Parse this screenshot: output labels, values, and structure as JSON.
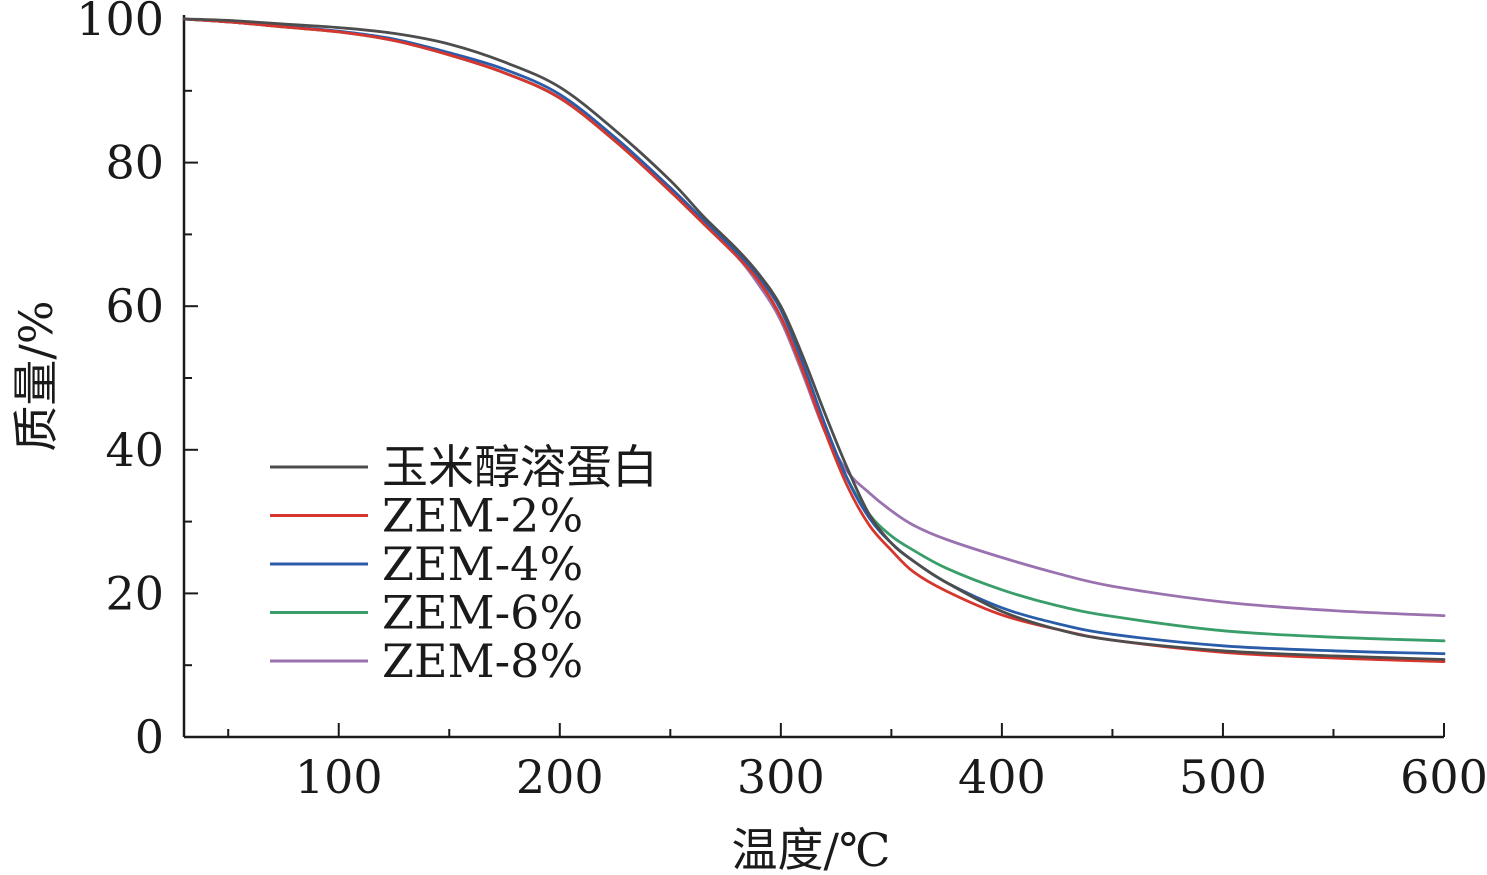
{
  "chart_data": {
    "type": "line",
    "title": "",
    "xlabel": "温度/℃",
    "ylabel": "质量/%",
    "xlim": [
      30,
      600
    ],
    "ylim": [
      0,
      100
    ],
    "x_ticks": [
      "100",
      "200",
      "300",
      "400",
      "500",
      "600"
    ],
    "y_ticks": [
      "0",
      "20",
      "40",
      "60",
      "80",
      "100"
    ],
    "grid": false,
    "legend_position": "lower-left",
    "x": [
      30,
      50,
      75,
      100,
      125,
      150,
      175,
      200,
      225,
      250,
      265,
      280,
      290,
      300,
      310,
      320,
      330,
      340,
      350,
      360,
      375,
      400,
      425,
      450,
      500,
      550,
      600
    ],
    "series": [
      {
        "name": "玉米醇溶蛋白",
        "color": "#4d4d4d",
        "values": [
          100,
          99.8,
          99.3,
          98.8,
          98.0,
          96.5,
          94.0,
          90.5,
          84.5,
          77.5,
          72.5,
          68.0,
          64.5,
          60.0,
          53.0,
          45.0,
          37.5,
          31.0,
          27.0,
          24.5,
          21.5,
          17.5,
          15.0,
          13.5,
          12.0,
          11.3,
          10.8
        ]
      },
      {
        "name": "ZEM-2%",
        "color": "#d6362d",
        "values": [
          100,
          99.6,
          98.9,
          98.2,
          97.0,
          95.0,
          92.5,
          89.0,
          83.0,
          76.0,
          71.5,
          67.0,
          63.5,
          58.5,
          51.0,
          42.5,
          35.0,
          29.5,
          26.0,
          23.0,
          20.3,
          17.0,
          15.0,
          13.5,
          11.8,
          11.0,
          10.5
        ]
      },
      {
        "name": "ZEM-4%",
        "color": "#2a5caa",
        "values": [
          100,
          99.6,
          99.0,
          98.3,
          97.2,
          95.3,
          93.0,
          89.5,
          83.5,
          76.5,
          72.0,
          67.5,
          64.0,
          59.5,
          52.0,
          43.5,
          36.0,
          30.5,
          27.0,
          24.5,
          21.5,
          18.0,
          15.8,
          14.3,
          12.7,
          12.0,
          11.6
        ]
      },
      {
        "name": "ZEM-6%",
        "color": "#3a9e6a",
        "values": [
          100,
          99.6,
          98.9,
          98.2,
          97.0,
          95.0,
          92.5,
          89.0,
          83.0,
          76.0,
          71.5,
          67.0,
          63.5,
          58.5,
          51.0,
          43.0,
          36.0,
          31.0,
          28.0,
          26.0,
          23.5,
          20.5,
          18.3,
          16.8,
          14.8,
          13.9,
          13.4
        ]
      },
      {
        "name": "ZEM-8%",
        "color": "#9b72b0",
        "values": [
          100,
          99.6,
          98.9,
          98.2,
          97.0,
          95.0,
          92.5,
          89.0,
          83.0,
          76.0,
          71.5,
          67.0,
          63.0,
          58.0,
          50.5,
          42.5,
          37.0,
          34.0,
          31.5,
          29.5,
          27.5,
          25.0,
          22.8,
          21.0,
          18.8,
          17.6,
          16.9
        ]
      }
    ]
  }
}
